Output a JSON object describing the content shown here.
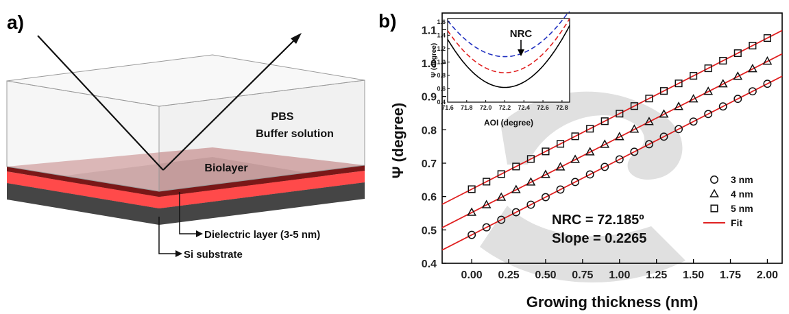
{
  "panel_a": {
    "label": "a)",
    "medium_label_1": "PBS",
    "medium_label_2": "Buffer solution",
    "biolayer_label": "Biolayer",
    "dielectric_label": "Dielectric layer (3-5 nm)",
    "substrate_label": "Si substrate",
    "colors": {
      "biolayer": "#a24848",
      "dielectric": "#ff4a4a",
      "substrate": "#454545",
      "box": "#e8e8e8"
    }
  },
  "panel_b": {
    "label": "b)"
  },
  "chart_data": [
    {
      "type": "scatter",
      "xlabel": "Growing thickness (nm)",
      "ylabel": "Ψ (degree)",
      "xlim": [
        -0.2,
        2.1
      ],
      "ylim": [
        0.4,
        1.15
      ],
      "xticks": [
        "0.00",
        "0.25",
        "0.50",
        "0.75",
        "1.00",
        "1.25",
        "1.50",
        "1.75",
        "2.00"
      ],
      "yticks": [
        "0.4",
        "0.5",
        "0.6",
        "0.7",
        "0.8",
        "0.9",
        "1.0",
        "1.1"
      ],
      "annotation_1": "NRC = 72.185º",
      "annotation_2": "Slope = 0.2265",
      "legend_position": "bottom-right",
      "series": [
        {
          "name": "3 nm",
          "marker": "circle",
          "intercept": 0.485,
          "slope": 0.2265,
          "x": [
            0,
            0.1,
            0.2,
            0.3,
            0.4,
            0.5,
            0.6,
            0.7,
            0.8,
            0.9,
            1.0,
            1.1,
            1.2,
            1.3,
            1.4,
            1.5,
            1.6,
            1.7,
            1.8,
            1.9,
            2.0
          ]
        },
        {
          "name": "4 nm",
          "marker": "triangle",
          "intercept": 0.552,
          "slope": 0.2265,
          "x": [
            0,
            0.1,
            0.2,
            0.3,
            0.4,
            0.5,
            0.6,
            0.7,
            0.8,
            0.9,
            1.0,
            1.1,
            1.2,
            1.3,
            1.4,
            1.5,
            1.6,
            1.7,
            1.8,
            1.9,
            2.0
          ]
        },
        {
          "name": "5 nm",
          "marker": "square",
          "intercept": 0.622,
          "slope": 0.2265,
          "x": [
            0,
            0.1,
            0.2,
            0.3,
            0.4,
            0.5,
            0.6,
            0.7,
            0.8,
            0.9,
            1.0,
            1.1,
            1.2,
            1.3,
            1.4,
            1.5,
            1.6,
            1.7,
            1.8,
            1.9,
            2.0
          ]
        },
        {
          "name": "Fit",
          "marker": "line",
          "color": "#e02020"
        }
      ]
    },
    {
      "type": "line",
      "xlabel": "AOI (degree)",
      "ylabel": "Ψ (degree)",
      "xlim": [
        71.6,
        72.88
      ],
      "ylim": [
        0.4,
        1.65
      ],
      "xticks": [
        "71.6",
        "71.8",
        "72.0",
        "72.2",
        "72.4",
        "72.6",
        "72.8"
      ],
      "yticks": [
        "0.4",
        "0.6",
        "0.8",
        "1.0",
        "1.2",
        "1.4",
        "1.6"
      ],
      "annotation": "NRC",
      "series": [
        {
          "style": "solid",
          "color": "#000000",
          "min_x": 72.2,
          "min_y": 0.62,
          "curvature": 2.0
        },
        {
          "style": "dashed",
          "color": "#e02020",
          "min_x": 72.2,
          "min_y": 0.84,
          "curvature": 1.75
        },
        {
          "style": "dashed",
          "color": "#2030c0",
          "min_x": 72.2,
          "min_y": 1.08,
          "curvature": 1.5
        }
      ]
    }
  ]
}
